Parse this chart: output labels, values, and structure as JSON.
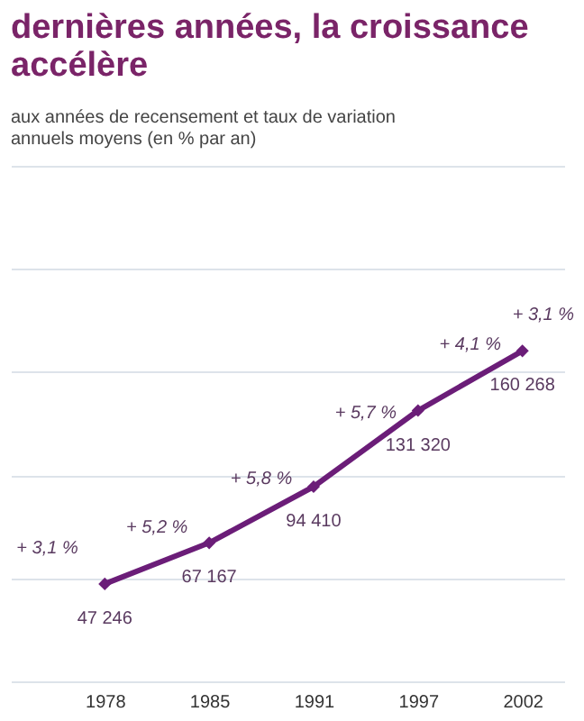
{
  "chart_data": {
    "type": "line",
    "title": [
      "dernières années, la croissance",
      "accélère"
    ],
    "subtitle": [
      "aux années de recensement et taux de variation",
      "annuels moyens (en % par an)"
    ],
    "categories": [
      "1978",
      "1985",
      "1991",
      "1997",
      "2002"
    ],
    "series": [
      {
        "color": "#6b1d78",
        "values": [
          47246,
          67167,
          94410,
          131320,
          160268
        ],
        "value_labels": [
          "47 246",
          "67 167",
          "94 410",
          "131 320",
          "160 268"
        ]
      }
    ],
    "annotations": [
      "+ 3,1 %",
      "+ 5,2 %",
      "+ 5,8 %",
      "+ 5,7 %",
      "+ 4,1 %",
      "+ 3,1 %"
    ],
    "ylim": [
      0,
      250000
    ],
    "yticks": [
      {
        "value": 0,
        "label": null
      },
      {
        "value": 50000,
        "label": null
      },
      {
        "value": 100000,
        "label": null
      },
      {
        "value": 150000,
        "label": null
      },
      {
        "value": 200000,
        "label": null
      },
      {
        "value": 250000,
        "label": null
      }
    ],
    "grid": "y",
    "marker": "diamond",
    "line_style": "solid",
    "tick_labels": "x"
  }
}
